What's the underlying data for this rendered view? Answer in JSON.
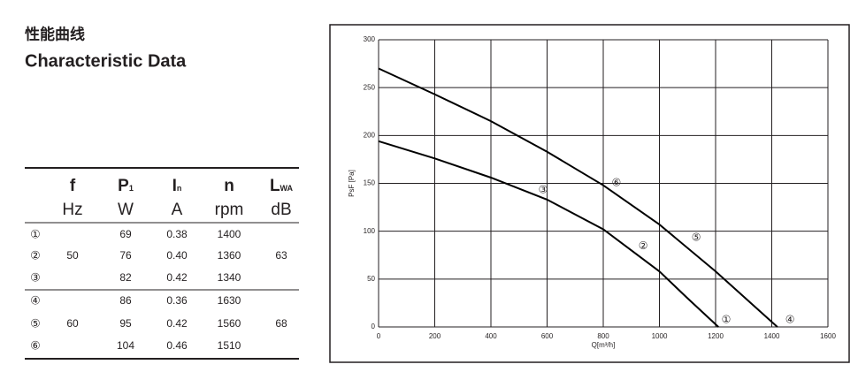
{
  "header": {
    "title_cn": "性能曲线",
    "title_en": "Characteristic Data"
  },
  "table": {
    "columns": [
      {
        "symbol": "f",
        "sub": null,
        "unit": "Hz"
      },
      {
        "symbol": "P",
        "sub": "1",
        "unit": "W"
      },
      {
        "symbol": "I",
        "sub": "n",
        "unit": "A"
      },
      {
        "symbol": "n",
        "sub": null,
        "unit": "rpm"
      },
      {
        "symbol": "L",
        "sub": "WA",
        "unit": "dB"
      }
    ],
    "groups": [
      {
        "f": "50",
        "lwa": "63",
        "rows": [
          {
            "id": "①",
            "p": "69",
            "i": "0.38",
            "n": "1400"
          },
          {
            "id": "②",
            "p": "76",
            "i": "0.40",
            "n": "1360"
          },
          {
            "id": "③",
            "p": "82",
            "i": "0.42",
            "n": "1340"
          }
        ]
      },
      {
        "f": "60",
        "lwa": "68",
        "rows": [
          {
            "id": "④",
            "p": "86",
            "i": "0.36",
            "n": "1630"
          },
          {
            "id": "⑤",
            "p": "95",
            "i": "0.42",
            "n": "1560"
          },
          {
            "id": "⑥",
            "p": "104",
            "i": "0.46",
            "n": "1510"
          }
        ]
      }
    ]
  },
  "chart_data": {
    "type": "line",
    "x_label": "Q[m³/h]",
    "y_label": "PsF [Pa]",
    "xlim": [
      0,
      1600
    ],
    "xticks": [
      0,
      200,
      400,
      600,
      800,
      1000,
      1200,
      1400,
      1600
    ],
    "ylim": [
      0,
      300
    ],
    "yticks": [
      0,
      50,
      100,
      150,
      200,
      250,
      300
    ],
    "grid": true,
    "series": [
      {
        "color": "#000000",
        "x": [
          0,
          200,
          400,
          600,
          800,
          1000,
          1100,
          1210
        ],
        "values": [
          194,
          176,
          156,
          133,
          102,
          58,
          30,
          0
        ]
      },
      {
        "color": "#000000",
        "x": [
          0,
          200,
          400,
          600,
          800,
          1000,
          1200,
          1420
        ],
        "values": [
          270,
          243,
          215,
          183,
          148,
          107,
          58,
          0
        ]
      }
    ],
    "annotations": [
      {
        "text": "①",
        "x": 1238,
        "y": 7
      },
      {
        "text": "②",
        "x": 942,
        "y": 84
      },
      {
        "text": "③",
        "x": 586,
        "y": 143
      },
      {
        "text": "④",
        "x": 1465,
        "y": 7
      },
      {
        "text": "⑤",
        "x": 1131,
        "y": 93
      },
      {
        "text": "⑥",
        "x": 847,
        "y": 150
      }
    ]
  }
}
